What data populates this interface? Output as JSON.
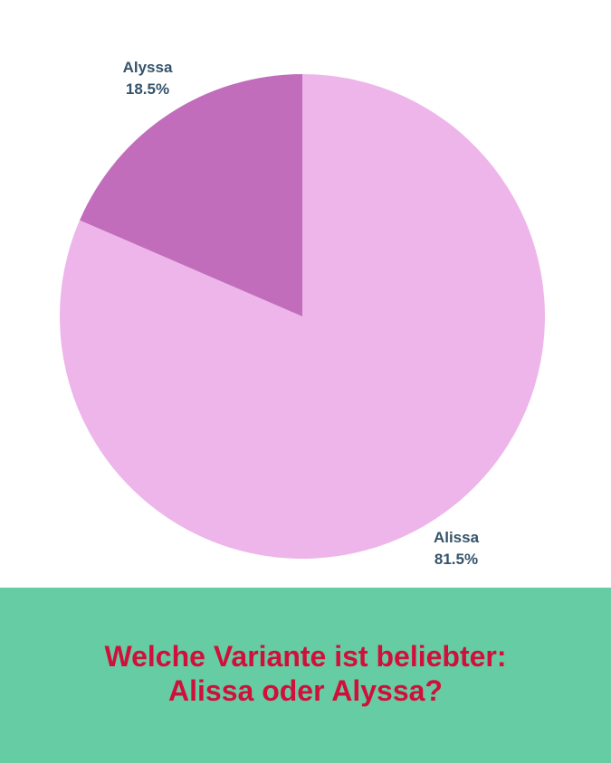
{
  "chart_data": {
    "type": "pie",
    "title": "",
    "slices": [
      {
        "label": "Alissa",
        "value": 81.5,
        "value_label": "81.5%",
        "color": "#edb5ea"
      },
      {
        "label": "Alyssa",
        "value": 18.5,
        "value_label": "18.5%",
        "color": "#c16dbb"
      }
    ],
    "legend": "none",
    "start_angle": "12 o'clock",
    "direction": "clockwise"
  },
  "footer": {
    "line1": "Welche Variante ist beliebter:",
    "line2": "Alissa oder Alyssa?",
    "background": "#66cca3",
    "text_color": "#d0103a"
  }
}
